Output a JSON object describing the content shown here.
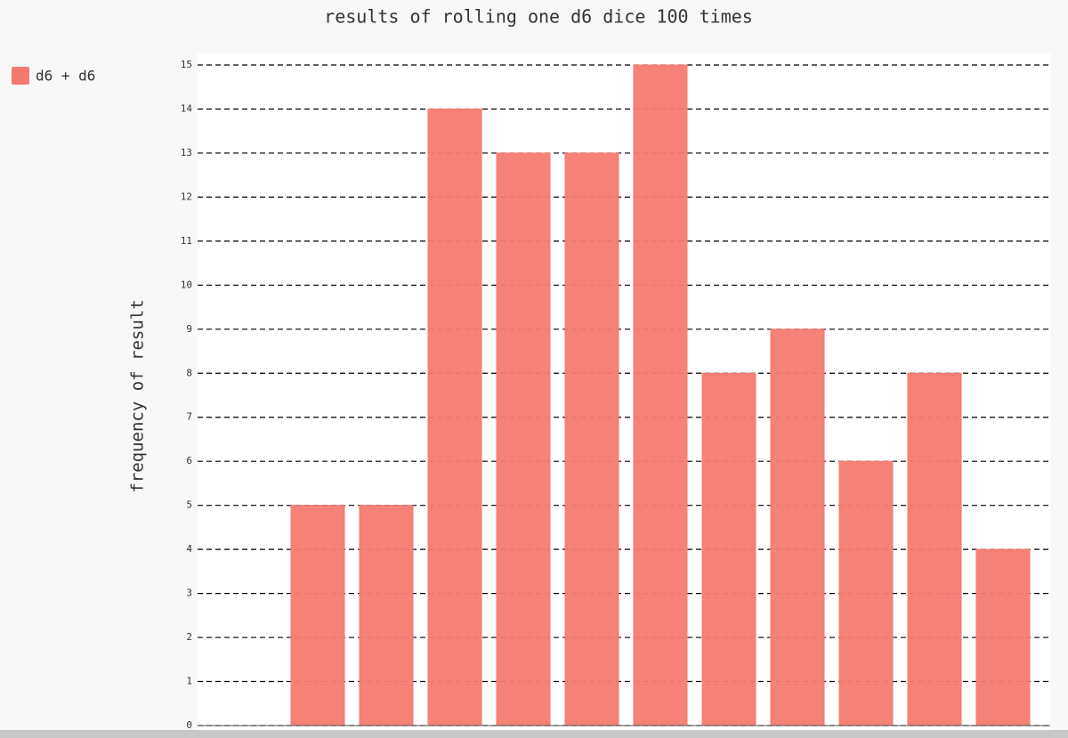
{
  "chart_data": {
    "type": "bar",
    "title": "results of rolling one d6 dice 100 times",
    "y_label": "frequency of result",
    "series": [
      {
        "name": "d6 + d6",
        "color": "#f47a70",
        "values": [
          0,
          5,
          5,
          14,
          13,
          13,
          15,
          8,
          9,
          6,
          8,
          4
        ]
      }
    ],
    "ylim": [
      0,
      15
    ],
    "yticks": [
      0,
      1,
      2,
      3,
      4,
      5,
      6,
      7,
      8,
      9,
      10,
      11,
      12,
      13,
      14,
      15
    ],
    "grid": true,
    "legend": "top-left"
  }
}
